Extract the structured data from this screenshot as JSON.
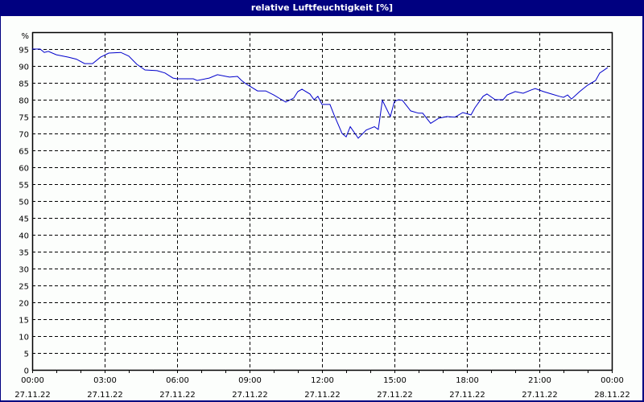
{
  "window": {
    "title": "relative Luftfeuchtigkeit [%]"
  },
  "colors": {
    "frame": "#000080",
    "background": "#fcfefc",
    "series_line": "#0000cc",
    "grid": "#000000"
  },
  "chart_data": {
    "type": "line",
    "title": "relative Luftfeuchtigkeit [%]",
    "xlabel": "",
    "ylabel": "%",
    "ylim": [
      0,
      100
    ],
    "xlim_hours": [
      0,
      24
    ],
    "grid": true,
    "grid_style": "dashed",
    "y_ticks": [
      0,
      5,
      10,
      15,
      20,
      25,
      30,
      35,
      40,
      45,
      50,
      55,
      60,
      65,
      70,
      75,
      80,
      85,
      90,
      95
    ],
    "y_unit_label": "%",
    "x_ticks": [
      {
        "time": "00:00",
        "date": "27.11.22",
        "hour": 0
      },
      {
        "time": "03:00",
        "date": "27.11.22",
        "hour": 3
      },
      {
        "time": "06:00",
        "date": "27.11.22",
        "hour": 6
      },
      {
        "time": "09:00",
        "date": "27.11.22",
        "hour": 9
      },
      {
        "time": "12:00",
        "date": "27.11.22",
        "hour": 12
      },
      {
        "time": "15:00",
        "date": "27.11.22",
        "hour": 15
      },
      {
        "time": "18:00",
        "date": "27.11.22",
        "hour": 18
      },
      {
        "time": "21:00",
        "date": "27.11.22",
        "hour": 21
      },
      {
        "time": "00:00",
        "date": "28.11.22",
        "hour": 24
      }
    ],
    "series": [
      {
        "name": "relative Luftfeuchtigkeit",
        "x_hours": [
          0,
          0.33,
          0.5,
          0.67,
          1.0,
          1.5,
          1.83,
          2.17,
          2.5,
          2.83,
          3.17,
          3.67,
          4.0,
          4.33,
          4.67,
          5.17,
          5.5,
          5.83,
          6.0,
          6.67,
          6.83,
          7.33,
          7.67,
          8.17,
          8.5,
          8.67,
          8.83,
          9.33,
          9.67,
          10.0,
          10.33,
          10.5,
          10.83,
          11.0,
          11.17,
          11.5,
          11.67,
          11.83,
          12.0,
          12.33,
          12.5,
          12.83,
          13.0,
          13.17,
          13.5,
          13.83,
          14.17,
          14.33,
          14.5,
          14.83,
          15.0,
          15.17,
          15.33,
          15.67,
          16.0,
          16.17,
          16.5,
          16.83,
          17.17,
          17.5,
          17.83,
          18.17,
          18.33,
          18.67,
          18.83,
          19.17,
          19.5,
          19.67,
          20.0,
          20.33,
          20.67,
          20.83,
          21.17,
          21.5,
          21.83,
          22.0,
          22.17,
          22.33,
          22.67,
          23.0,
          23.33,
          23.5
        ],
        "values": [
          95.0,
          95.0,
          94.0,
          94.3,
          93.3,
          92.6,
          92.0,
          90.7,
          90.7,
          92.6,
          93.8,
          94.0,
          92.9,
          90.5,
          88.8,
          88.6,
          87.9,
          86.4,
          86.2,
          86.2,
          85.7,
          86.4,
          87.4,
          86.7,
          86.9,
          85.7,
          84.8,
          82.6,
          82.6,
          81.4,
          80.0,
          79.3,
          80.5,
          82.4,
          83.1,
          81.7,
          80.0,
          81.0,
          78.6,
          78.6,
          75.5,
          70.0,
          69.0,
          72.0,
          68.6,
          71.0,
          72.0,
          71.2,
          79.8,
          75.0,
          79.5,
          80.0,
          79.8,
          76.7,
          76.0,
          76.0,
          73.0,
          74.5,
          75.0,
          74.8,
          76.2,
          75.5,
          77.6,
          81.0,
          81.7,
          80.0,
          80.0,
          81.4,
          82.4,
          81.9,
          82.9,
          83.3,
          82.4,
          81.7,
          81.0,
          80.7,
          81.4,
          80.2,
          82.4,
          84.3,
          85.7,
          87.9
        ],
        "end_point": {
          "hour": 23.83,
          "value": 89.5
        },
        "color": "#0000cc"
      }
    ]
  }
}
